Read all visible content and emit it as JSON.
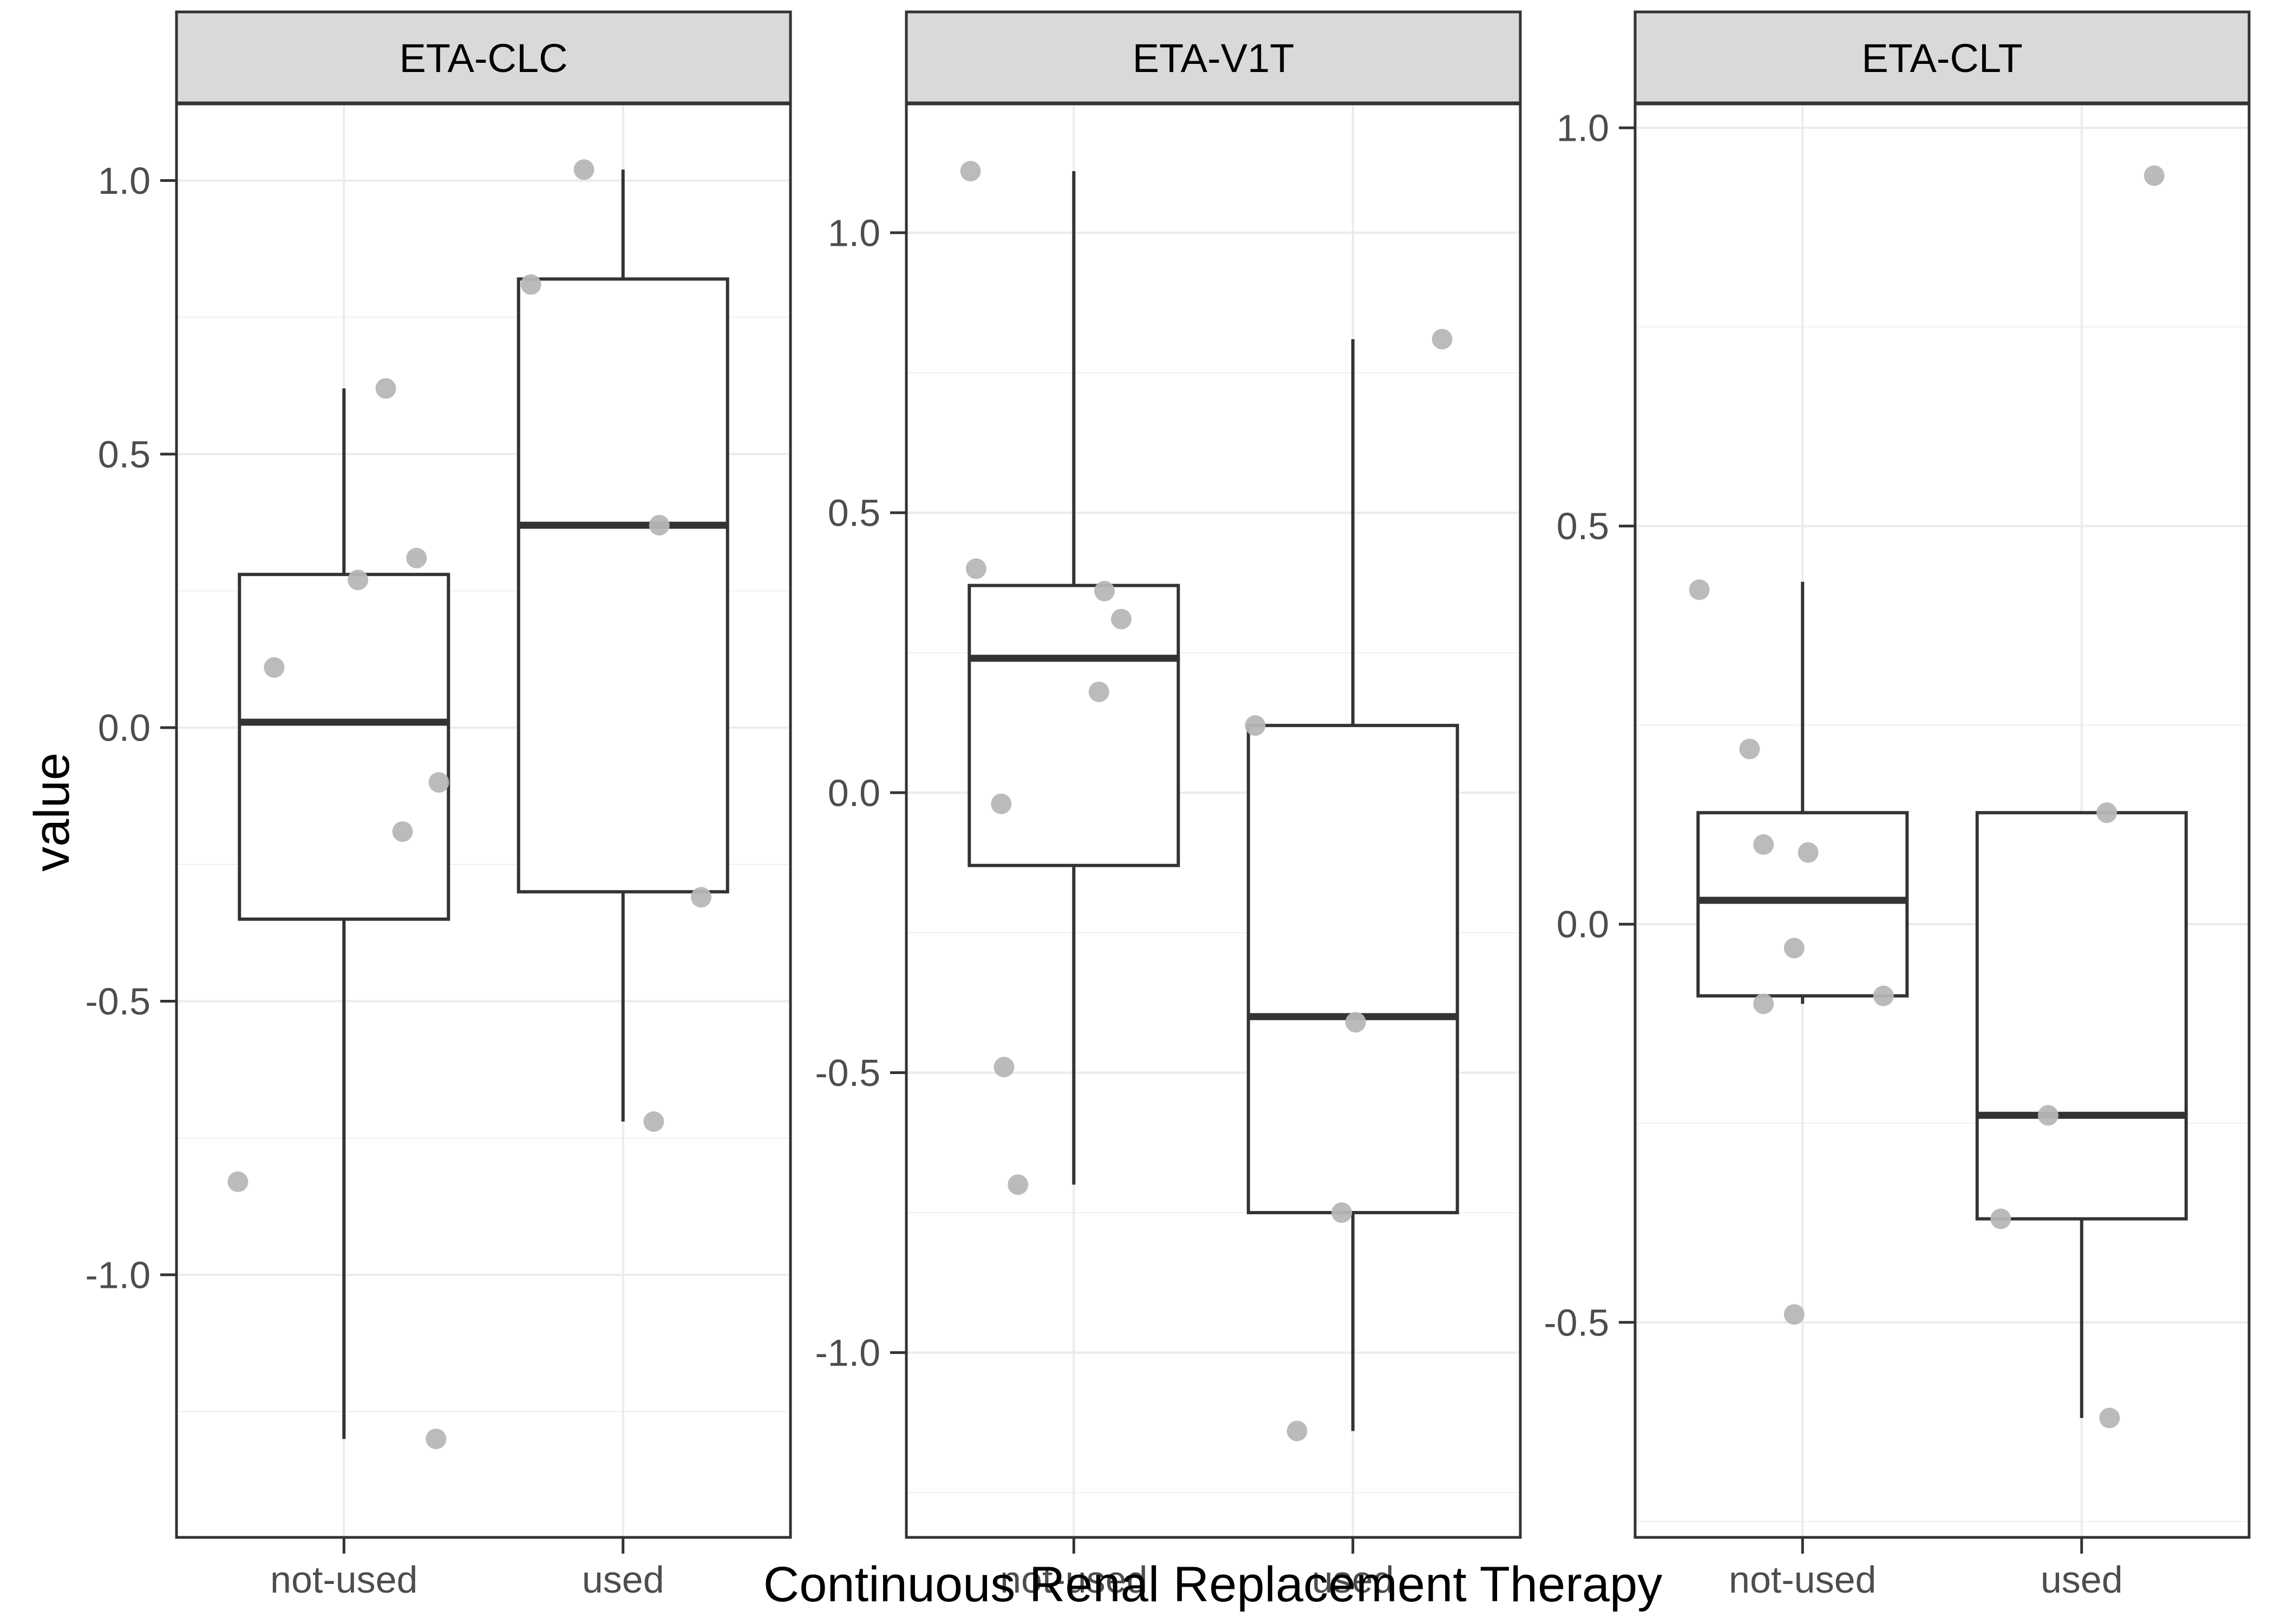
{
  "figure": {
    "y_axis_title": "value",
    "x_axis_title": "Continuous Renal Replacement Therapy",
    "x_categories": [
      "not-used",
      "used"
    ]
  },
  "style": {
    "background": "#ffffff",
    "panel_bg": "#ffffff",
    "strip_bg": "#d9d9d9",
    "strip_text_color": "#000000",
    "line_color": "#333333",
    "gridline_color": "#ebebeb",
    "minor_gridline_color": "#efefef",
    "tick_label_color": "#4d4d4d",
    "axis_title_color": "#000000",
    "point_color": "#b7b7b7"
  },
  "chart_data": {
    "type": "boxplot",
    "title": "",
    "xlabel": "Continuous Renal Replacement Therapy",
    "ylabel": "value",
    "x_categories": [
      "not-used",
      "used"
    ],
    "legend": "none",
    "grid": "on",
    "facets": [
      {
        "label": "ETA-CLC",
        "ylim": [
          -1.48,
          1.14
        ],
        "yticks": [
          {
            "value": 1.0,
            "label": "1.0"
          },
          {
            "value": 0.5,
            "label": "0.5"
          },
          {
            "value": 0.0,
            "label": "0.0"
          },
          {
            "value": -0.5,
            "label": "-0.5"
          },
          {
            "value": -1.0,
            "label": "-1.0"
          }
        ],
        "groups": [
          {
            "category": "not-used",
            "q1": -0.35,
            "median": 0.01,
            "q3": 0.28,
            "whisker_low": -1.3,
            "whisker_high": 0.62,
            "points": [
              [
                0.62,
                0.15
              ],
              [
                0.31,
                0.26
              ],
              [
                0.27,
                0.05
              ],
              [
                0.11,
                -0.25
              ],
              [
                -0.1,
                0.34
              ],
              [
                -0.19,
                0.21
              ],
              [
                -0.83,
                -0.38
              ],
              [
                -1.3,
                0.33
              ]
            ]
          },
          {
            "category": "used",
            "q1": -0.3,
            "median": 0.37,
            "q3": 0.82,
            "whisker_low": -0.72,
            "whisker_high": 1.02,
            "points": [
              [
                1.02,
                -0.14
              ],
              [
                0.81,
                -0.33
              ],
              [
                0.37,
                0.13
              ],
              [
                -0.31,
                0.28
              ],
              [
                -0.72,
                0.11
              ]
            ]
          }
        ]
      },
      {
        "label": "ETA-V1T",
        "ylim": [
          -1.33,
          1.23
        ],
        "yticks": [
          {
            "value": 1.0,
            "label": "1.0"
          },
          {
            "value": 0.5,
            "label": "0.5"
          },
          {
            "value": 0.0,
            "label": "0.0"
          },
          {
            "value": -0.5,
            "label": "-0.5"
          },
          {
            "value": -1.0,
            "label": "-1.0"
          }
        ],
        "groups": [
          {
            "category": "not-used",
            "q1": -0.13,
            "median": 0.24,
            "q3": 0.37,
            "whisker_low": -0.7,
            "whisker_high": 1.11,
            "points": [
              [
                1.11,
                -0.37
              ],
              [
                0.4,
                -0.35
              ],
              [
                0.36,
                0.11
              ],
              [
                0.31,
                0.17
              ],
              [
                0.18,
                0.09
              ],
              [
                -0.02,
                -0.26
              ],
              [
                -0.49,
                -0.25
              ],
              [
                -0.7,
                -0.2
              ]
            ]
          },
          {
            "category": "used",
            "q1": -0.75,
            "median": -0.4,
            "q3": 0.12,
            "whisker_low": -1.14,
            "whisker_high": 0.81,
            "points": [
              [
                0.81,
                0.32
              ],
              [
                0.12,
                -0.35
              ],
              [
                -0.41,
                0.01
              ],
              [
                -0.75,
                -0.04
              ],
              [
                -1.14,
                -0.2
              ]
            ]
          }
        ]
      },
      {
        "label": "ETA-CLT",
        "ylim": [
          -0.77,
          1.03
        ],
        "yticks": [
          {
            "value": 1.0,
            "label": "1.0"
          },
          {
            "value": 0.5,
            "label": "0.5"
          },
          {
            "value": 0.0,
            "label": "0.0"
          },
          {
            "value": -0.5,
            "label": "-0.5"
          }
        ],
        "groups": [
          {
            "category": "not-used",
            "q1": -0.09,
            "median": 0.03,
            "q3": 0.14,
            "whisker_low": -0.1,
            "whisker_high": 0.43,
            "points": [
              [
                0.42,
                -0.37
              ],
              [
                0.22,
                -0.19
              ],
              [
                0.1,
                -0.14
              ],
              [
                0.09,
                0.02
              ],
              [
                -0.03,
                -0.03
              ],
              [
                -0.09,
                0.29
              ],
              [
                -0.1,
                -0.14
              ],
              [
                -0.49,
                -0.03
              ]
            ]
          },
          {
            "category": "used",
            "q1": -0.37,
            "median": -0.24,
            "q3": 0.14,
            "whisker_low": -0.62,
            "whisker_high": 0.14,
            "points": [
              [
                0.94,
                0.26
              ],
              [
                0.14,
                0.09
              ],
              [
                -0.24,
                -0.12
              ],
              [
                -0.37,
                -0.29
              ],
              [
                -0.62,
                0.1
              ]
            ]
          }
        ]
      }
    ]
  }
}
